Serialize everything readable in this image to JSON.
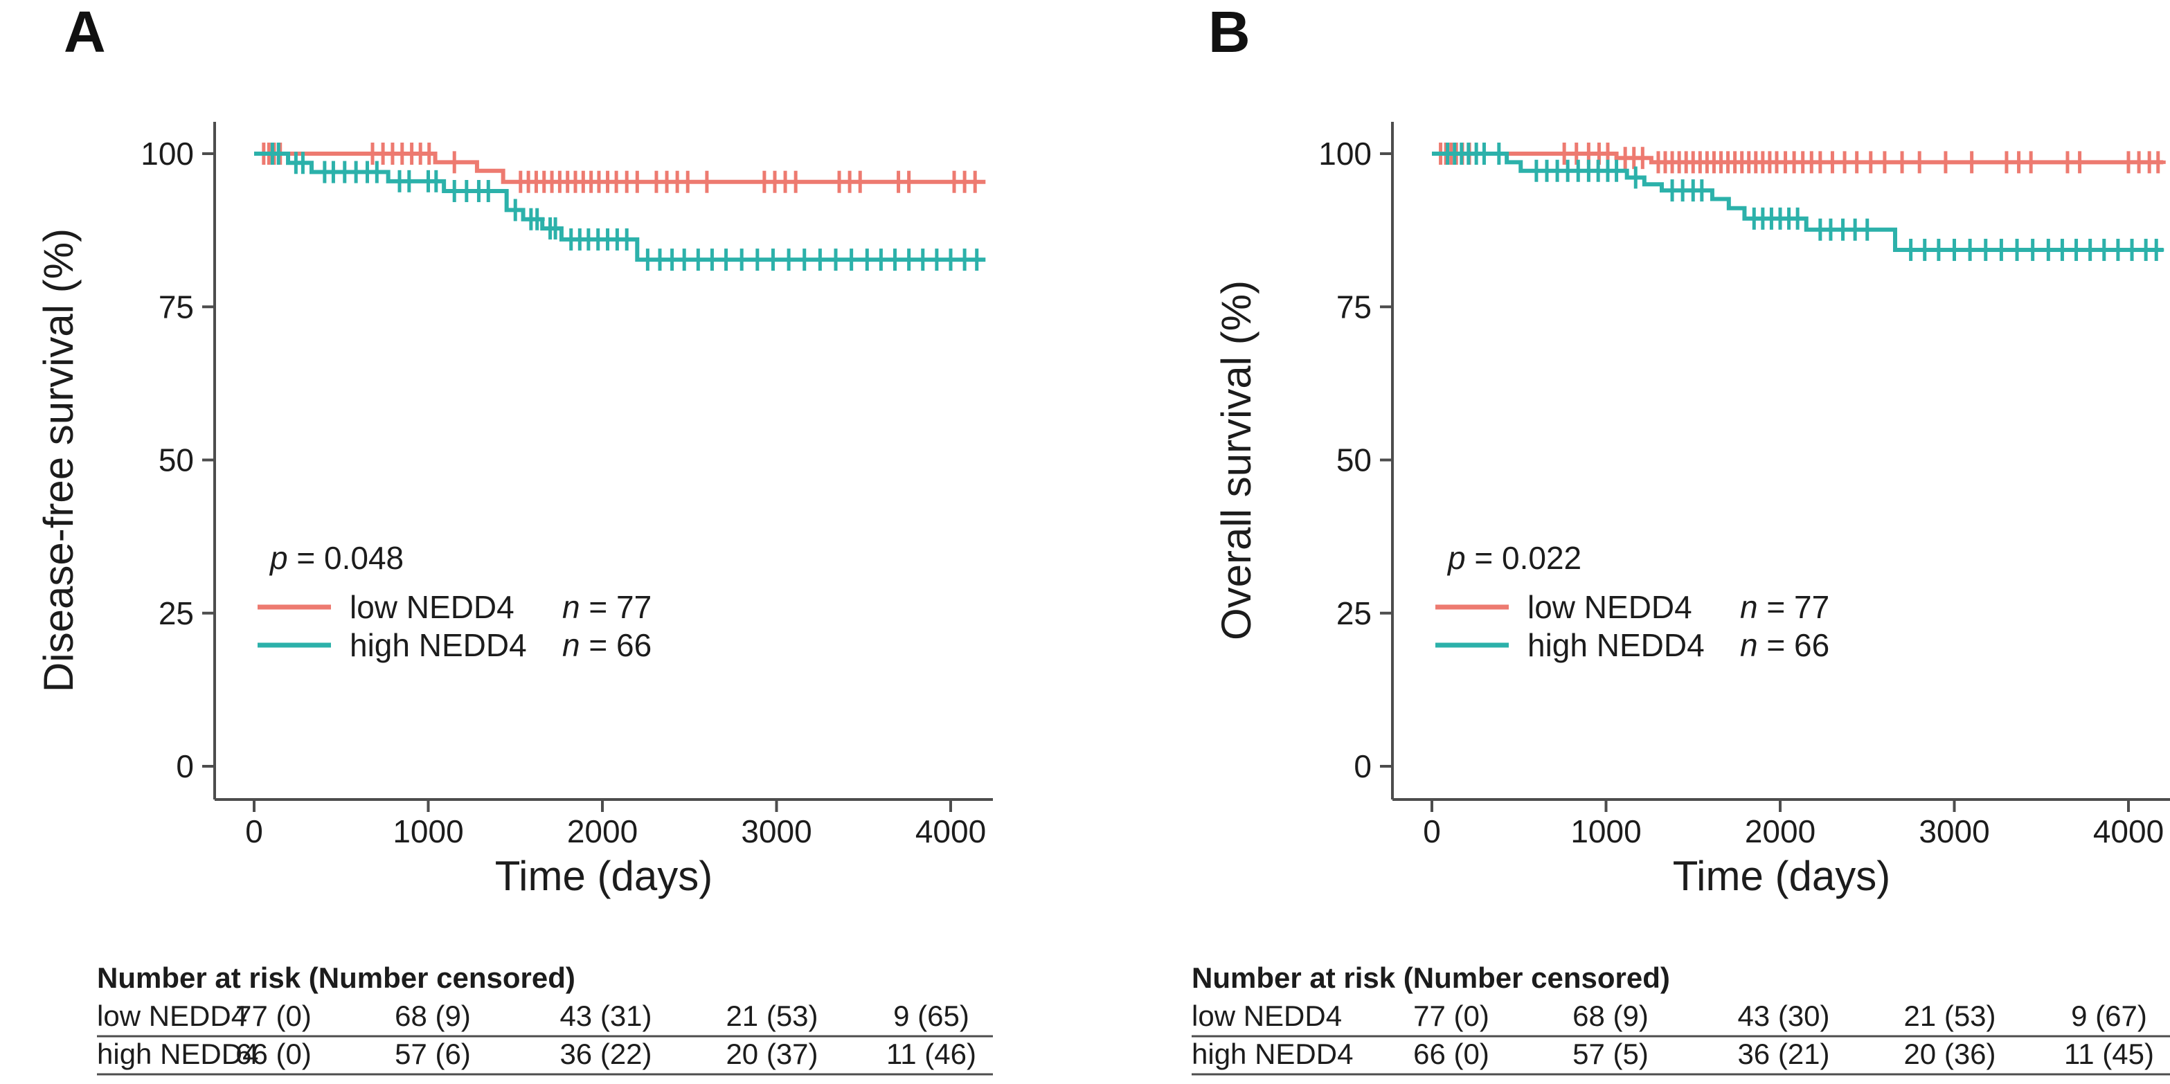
{
  "shared": {
    "colors": {
      "low": "#ed7a70",
      "high": "#2cb1aa",
      "axis": "#4d4d4d",
      "text": "#1c1c1c"
    },
    "p_prefix": "p",
    "n_prefix": "n",
    "x_label": "Time (days)",
    "risk_header": "Number at risk (Number censored)",
    "legend": [
      {
        "key": "low",
        "label": "low NEDD4",
        "n_rest": " = 77"
      },
      {
        "key": "high",
        "label": "high NEDD4",
        "n_rest": " = 66"
      }
    ]
  },
  "chart_data": [
    {
      "type": "km_step",
      "panel": "A",
      "ylabel": "Disease-free survival (%)",
      "xlabel": "Time (days)",
      "p_value": "p = 0.048",
      "p_rest": " = 0.048",
      "xlim": [
        0,
        4200
      ],
      "ylim": [
        0,
        100
      ],
      "x_ticks": [
        0,
        1000,
        2000,
        3000,
        4000
      ],
      "y_ticks": [
        100,
        75,
        50,
        25,
        0
      ],
      "legend_position": "left-center",
      "grid": false,
      "series": [
        {
          "name": "low NEDD4",
          "n": 77,
          "color_key": "low",
          "steps": [
            [
              0,
              100
            ],
            [
              1040,
              98.6
            ],
            [
              1280,
              97.2
            ],
            [
              1430,
              95.4
            ]
          ],
          "censor_times": [
            55,
            85,
            115,
            150,
            680,
            740,
            795,
            850,
            905,
            955,
            1005,
            1150,
            1530,
            1575,
            1620,
            1665,
            1710,
            1755,
            1800,
            1845,
            1890,
            1935,
            1980,
            2030,
            2080,
            2140,
            2200,
            2310,
            2370,
            2430,
            2490,
            2600,
            2930,
            2990,
            3050,
            3110,
            3360,
            3420,
            3480,
            3700,
            3760,
            4020,
            4080,
            4140
          ]
        },
        {
          "name": "high NEDD4",
          "n": 66,
          "color_key": "high",
          "steps": [
            [
              0,
              100
            ],
            [
              195,
              98.5
            ],
            [
              330,
              97.0
            ],
            [
              770,
              95.5
            ],
            [
              1090,
              93.9
            ],
            [
              1450,
              90.8
            ],
            [
              1545,
              89.3
            ],
            [
              1655,
              87.8
            ],
            [
              1765,
              86.0
            ],
            [
              2200,
              82.7
            ]
          ],
          "censor_times": [
            105,
            140,
            240,
            280,
            405,
            455,
            520,
            585,
            650,
            705,
            835,
            890,
            1000,
            1045,
            1150,
            1220,
            1290,
            1345,
            1500,
            1590,
            1625,
            1700,
            1730,
            1820,
            1870,
            1920,
            1975,
            2030,
            2085,
            2140,
            2260,
            2330,
            2400,
            2470,
            2550,
            2630,
            2710,
            2800,
            2890,
            2980,
            3070,
            3160,
            3250,
            3340,
            3430,
            3520,
            3600,
            3680,
            3760,
            3840,
            3920,
            4000,
            4080,
            4150
          ]
        }
      ],
      "risk_table": {
        "header": "Number at risk (Number censored)",
        "times": [
          0,
          1000,
          2000,
          3000,
          4000
        ],
        "rows": [
          {
            "label": "low NEDD4",
            "cells": [
              "77 (0)",
              "68 (9)",
              "43 (31)",
              "21 (53)",
              "9 (65)"
            ]
          },
          {
            "label": "high NEDD4",
            "cells": [
              "66 (0)",
              "57 (6)",
              "36 (22)",
              "20 (37)",
              "11 (46)"
            ]
          }
        ]
      }
    },
    {
      "type": "km_step",
      "panel": "B",
      "ylabel": "Overall survival (%)",
      "xlabel": "Time (days)",
      "p_value": "p = 0.022",
      "p_rest": " = 0.022",
      "xlim": [
        0,
        4200
      ],
      "ylim": [
        0,
        100
      ],
      "x_ticks": [
        0,
        1000,
        2000,
        3000,
        4000
      ],
      "y_ticks": [
        100,
        75,
        50,
        25,
        0
      ],
      "legend_position": "left-center",
      "grid": false,
      "series": [
        {
          "name": "low NEDD4",
          "n": 77,
          "color_key": "low",
          "steps": [
            [
              0,
              100
            ],
            [
              1060,
              99.3
            ],
            [
              1260,
              98.6
            ]
          ],
          "censor_times": [
            50,
            80,
            110,
            140,
            175,
            215,
            760,
            830,
            900,
            960,
            1010,
            1110,
            1160,
            1210,
            1300,
            1340,
            1380,
            1420,
            1460,
            1500,
            1540,
            1580,
            1620,
            1660,
            1700,
            1740,
            1780,
            1820,
            1860,
            1900,
            1940,
            1980,
            2030,
            2080,
            2130,
            2180,
            2230,
            2300,
            2370,
            2440,
            2520,
            2600,
            2700,
            2800,
            2950,
            3100,
            3300,
            3370,
            3440,
            3650,
            3720,
            4000,
            4060,
            4120,
            4170
          ]
        },
        {
          "name": "high NEDD4",
          "n": 66,
          "color_key": "high",
          "steps": [
            [
              0,
              100
            ],
            [
              430,
              98.6
            ],
            [
              510,
              97.2
            ],
            [
              1120,
              96.1
            ],
            [
              1220,
              95.0
            ],
            [
              1320,
              94.0
            ],
            [
              1610,
              92.6
            ],
            [
              1705,
              91.1
            ],
            [
              1795,
              89.4
            ],
            [
              2150,
              87.6
            ],
            [
              2660,
              84.3
            ]
          ],
          "censor_times": [
            90,
            130,
            170,
            210,
            255,
            300,
            385,
            600,
            660,
            720,
            780,
            840,
            900,
            955,
            1010,
            1060,
            1170,
            1380,
            1440,
            1500,
            1550,
            1850,
            1900,
            1950,
            2000,
            2050,
            2100,
            2230,
            2290,
            2360,
            2430,
            2500,
            2750,
            2830,
            2910,
            3000,
            3090,
            3180,
            3270,
            3360,
            3450,
            3540,
            3620,
            3700,
            3780,
            3860,
            3940,
            4020,
            4100,
            4160
          ]
        }
      ],
      "risk_table": {
        "header": "Number at risk (Number censored)",
        "times": [
          0,
          1000,
          2000,
          3000,
          4000
        ],
        "rows": [
          {
            "label": "low NEDD4",
            "cells": [
              "77 (0)",
              "68 (9)",
              "43 (30)",
              "21 (53)",
              "9 (67)"
            ]
          },
          {
            "label": "high NEDD4",
            "cells": [
              "66 (0)",
              "57 (5)",
              "36 (21)",
              "20 (36)",
              "11 (45)"
            ]
          }
        ]
      }
    }
  ]
}
